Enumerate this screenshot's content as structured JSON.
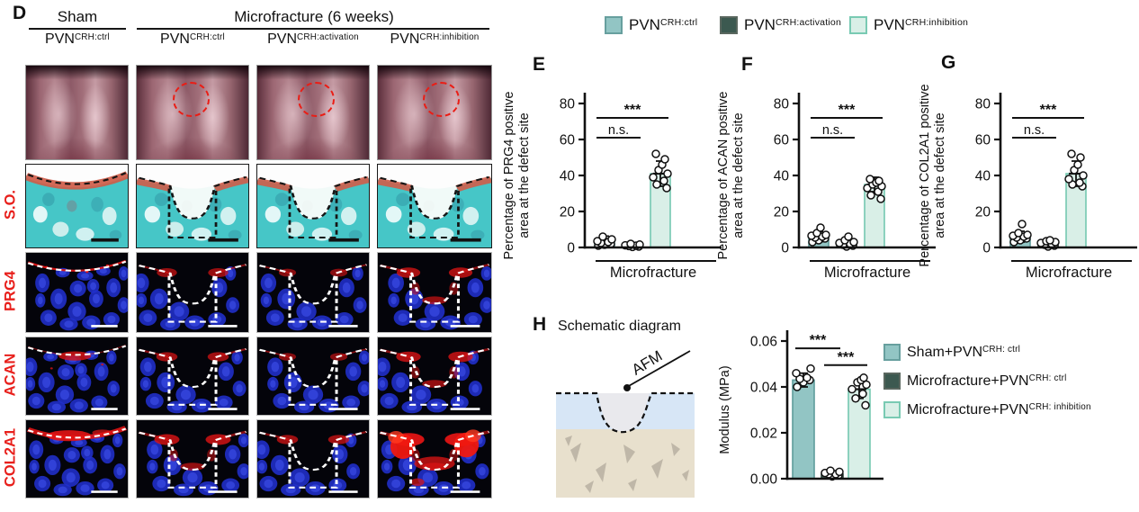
{
  "panels": {
    "d": {
      "letter": "D",
      "group_headers": [
        {
          "label": "Sham"
        },
        {
          "label": "Microfracture (6 weeks)"
        }
      ],
      "col_labels": [
        {
          "base": "PVN",
          "sup": "CRH:ctrl"
        },
        {
          "base": "PVN",
          "sup": "CRH:ctrl"
        },
        {
          "base": "PVN",
          "sup": "CRH:activation"
        },
        {
          "base": "PVN",
          "sup": "CRH:inhibition"
        }
      ],
      "row_labels": [
        "S.O.",
        "PRG4",
        "ACAN",
        "COL2A1"
      ]
    },
    "e": {
      "letter": "E"
    },
    "f": {
      "letter": "F"
    },
    "g": {
      "letter": "G"
    },
    "h": {
      "letter": "H",
      "title": "Schematic diagram",
      "afm_label": "AFM",
      "legend": [
        {
          "base": "Sham+PVN",
          "sup": "CRH: ctrl",
          "fill": "#92c5c4",
          "stroke": "#679f9e"
        },
        {
          "base": "Microfracture+PVN",
          "sup": "CRH: ctrl",
          "fill": "#3c5950",
          "stroke": "#5a675f"
        },
        {
          "base": "Microfracture+PVN",
          "sup": "CRH: inhibition",
          "fill": "#d9efe7",
          "stroke": "#79cab3"
        }
      ]
    }
  },
  "top_legend": {
    "items": [
      {
        "base": "PVN",
        "sup": "CRH:ctrl",
        "fill": "#92c5c4",
        "stroke": "#679f9e"
      },
      {
        "base": "PVN",
        "sup": "CRH:activation",
        "fill": "#3c5950",
        "stroke": "#5a675f"
      },
      {
        "base": "PVN",
        "sup": "CRH:inhibition",
        "fill": "#d9efe7",
        "stroke": "#79cab3"
      }
    ]
  },
  "chart_data": [
    {
      "id": "E",
      "type": "bar",
      "ylabel_lines": [
        "Percentage of PRG4 positive",
        "area at the defect site"
      ],
      "xlabel": "Microfracture",
      "ylim": [
        0,
        80
      ],
      "yticks": [
        0,
        20,
        40,
        60,
        80
      ],
      "ytick_labels": [
        "0",
        "20",
        "40",
        "60",
        "80"
      ],
      "categories": [
        "PVN CRH:ctrl",
        "PVN CRH:activation",
        "PVN CRH:inhibition"
      ],
      "bars": {
        "means": [
          3.5,
          0.8,
          41
        ],
        "errors": [
          2.8,
          0.6,
          7
        ],
        "fills": [
          "#92c5c4",
          "#3c5950",
          "#d9efe7"
        ],
        "strokes": [
          "#5e9c9b",
          "#2e453d",
          "#74c8b1"
        ]
      },
      "points": [
        [
          1,
          1.5,
          2,
          2.5,
          3,
          3.5,
          4.5,
          6
        ],
        [
          0.3,
          0.5,
          0.8,
          1,
          1.2,
          1.6,
          2
        ],
        [
          33,
          35,
          37,
          39,
          41,
          43,
          46,
          49,
          52
        ]
      ],
      "annotations": [
        {
          "label": "***",
          "from": 0,
          "to": 2,
          "y": 72
        },
        {
          "label": "n.s.",
          "from": 0,
          "to": 1,
          "y": 61
        }
      ]
    },
    {
      "id": "F",
      "type": "bar",
      "ylabel_lines": [
        "Percentage of ACAN positive",
        "area at the defect site"
      ],
      "xlabel": "Microfracture",
      "ylim": [
        0,
        80
      ],
      "yticks": [
        0,
        20,
        40,
        60,
        80
      ],
      "ytick_labels": [
        "0",
        "20",
        "40",
        "60",
        "80"
      ],
      "categories": [
        "PVN CRH:ctrl",
        "PVN CRH:activation",
        "PVN CRH:inhibition"
      ],
      "bars": {
        "means": [
          6,
          1.5,
          35
        ],
        "errors": [
          2.8,
          1,
          4
        ],
        "fills": [
          "#92c5c4",
          "#3c5950",
          "#d9efe7"
        ],
        "strokes": [
          "#5e9c9b",
          "#2e453d",
          "#74c8b1"
        ]
      },
      "points": [
        [
          3,
          4,
          5,
          5.5,
          6,
          6.5,
          7,
          8,
          11
        ],
        [
          0.5,
          1,
          1.5,
          2,
          2.5,
          3,
          4,
          6
        ],
        [
          27,
          29,
          31,
          33,
          34,
          35,
          36,
          37,
          38
        ]
      ],
      "annotations": [
        {
          "label": "***",
          "from": 0,
          "to": 2,
          "y": 72
        },
        {
          "label": "n.s.",
          "from": 0,
          "to": 1,
          "y": 61
        }
      ]
    },
    {
      "id": "G",
      "type": "bar",
      "ylabel_lines": [
        "Percentage of COL2A1 positive",
        "area at the defect site"
      ],
      "xlabel": "Microfracture",
      "ylim": [
        0,
        80
      ],
      "yticks": [
        0,
        20,
        40,
        60,
        80
      ],
      "ytick_labels": [
        "0",
        "20",
        "40",
        "60",
        "80"
      ],
      "categories": [
        "PVN CRH:ctrl",
        "PVN CRH:activation",
        "PVN CRH:inhibition"
      ],
      "bars": {
        "means": [
          6,
          2,
          41
        ],
        "errors": [
          3,
          1.2,
          7
        ],
        "fills": [
          "#92c5c4",
          "#3c5950",
          "#d9efe7"
        ],
        "strokes": [
          "#5e9c9b",
          "#2e453d",
          "#74c8b1"
        ]
      },
      "points": [
        [
          3,
          4,
          5,
          5.5,
          6,
          6.5,
          7,
          8,
          13
        ],
        [
          0.5,
          1,
          1.5,
          2,
          2.5,
          3,
          3.5,
          4
        ],
        [
          34,
          35,
          36,
          38,
          40,
          43,
          46,
          50,
          52
        ]
      ],
      "annotations": [
        {
          "label": "***",
          "from": 0,
          "to": 2,
          "y": 72
        },
        {
          "label": "n.s.",
          "from": 0,
          "to": 1,
          "y": 61
        }
      ]
    },
    {
      "id": "H",
      "type": "bar",
      "ylabel_lines": [
        "Modulus (MPa)"
      ],
      "xlabel": null,
      "ylim": [
        0,
        0.06
      ],
      "yticks": [
        0,
        0.02,
        0.04,
        0.06
      ],
      "ytick_labels": [
        "0.00",
        "0.02",
        "0.04",
        "0.06"
      ],
      "categories": [
        "Sham+PVN CRH: ctrl",
        "Microfracture+PVN CRH: ctrl",
        "Microfracture+PVN CRH: inhibition"
      ],
      "bars": {
        "means": [
          0.043,
          0.002,
          0.039
        ],
        "errors": [
          0.003,
          0.001,
          0.004
        ],
        "fills": [
          "#92c5c4",
          "#3c5950",
          "#d9efe7"
        ],
        "strokes": [
          "#5e9c9b",
          "#2e453d",
          "#74c8b1"
        ]
      },
      "points": [
        [
          0.04,
          0.042,
          0.043,
          0.0435,
          0.044,
          0.046,
          0.048
        ],
        [
          0.001,
          0.0015,
          0.002,
          0.002,
          0.0025,
          0.003,
          0.0035
        ],
        [
          0.032,
          0.035,
          0.037,
          0.039,
          0.041,
          0.042,
          0.043,
          0.044
        ]
      ],
      "annotations": [
        {
          "label": "***",
          "from": 0,
          "to": 1,
          "y": 0.0568
        },
        {
          "label": "***",
          "from": 1,
          "to": 2,
          "y": 0.0495
        }
      ]
    }
  ]
}
